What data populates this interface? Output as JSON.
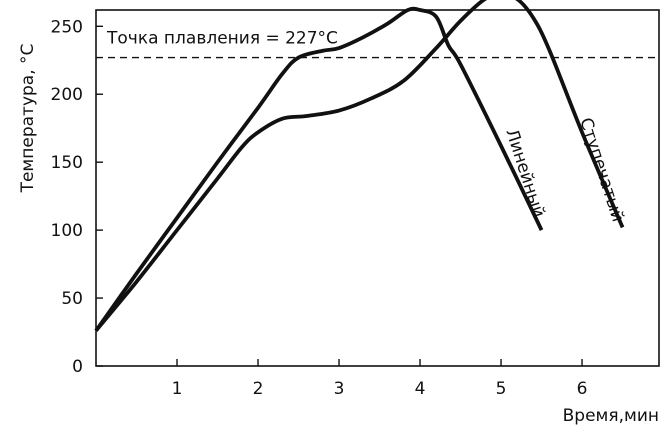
{
  "chart_data": {
    "type": "line",
    "title": "",
    "xlabel": "Время,мин",
    "ylabel": "Температура, °C",
    "xlim": [
      0,
      6.95
    ],
    "ylim": [
      0,
      262
    ],
    "xticks": [
      1,
      2,
      3,
      4,
      5,
      6
    ],
    "yticks": [
      0,
      50,
      100,
      150,
      200,
      250
    ],
    "grid": false,
    "legend": "none",
    "reference_line": {
      "y": 227,
      "label": "Точка плавления = 227°C",
      "style": "dashed"
    },
    "series": [
      {
        "name": "Линейный",
        "x": [
          0,
          0.5,
          1.0,
          1.5,
          2.0,
          2.3,
          2.5,
          2.8,
          3.0,
          3.3,
          3.6,
          3.85,
          4.0,
          4.2,
          4.35,
          4.5,
          5.0,
          5.5
        ],
        "y": [
          26,
          68,
          109,
          150,
          190,
          215,
          227,
          232,
          234,
          242,
          252,
          262,
          262,
          257,
          236,
          222,
          162,
          100
        ]
      },
      {
        "name": "Ступечатый",
        "x": [
          0,
          0.5,
          1.0,
          1.5,
          1.8,
          2.0,
          2.3,
          2.6,
          3.0,
          3.4,
          3.8,
          4.2,
          4.5,
          4.8,
          5.0,
          5.2,
          5.4,
          5.6,
          6.0,
          6.5
        ],
        "y": [
          26,
          62,
          100,
          138,
          161,
          172,
          182,
          184,
          188,
          197,
          210,
          234,
          254,
          270,
          273,
          270,
          256,
          232,
          172,
          102
        ]
      }
    ],
    "curve_labels": [
      "Линейный",
      "Ступечатый"
    ],
    "colors": {
      "line": "#111111",
      "background": "#ffffff"
    }
  }
}
